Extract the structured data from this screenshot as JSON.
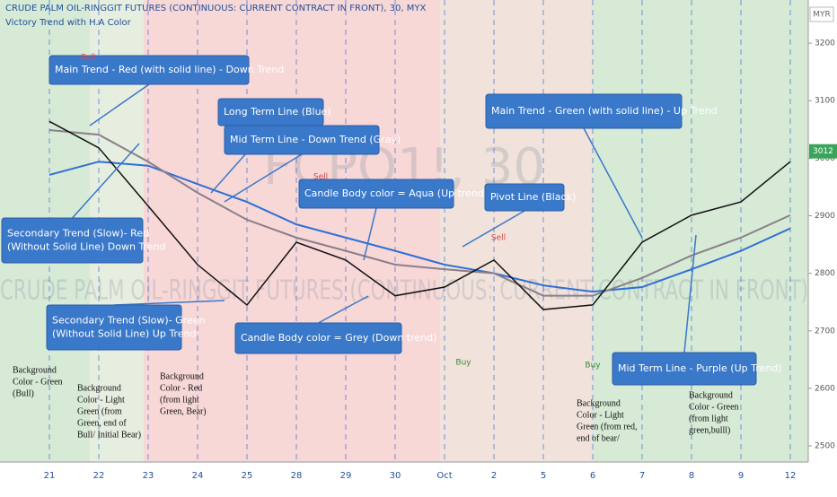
{
  "chart_data": {
    "type": "line",
    "title": "CRUDE PALM OIL-RINGGIT FUTURES (CONTINUOUS: CURRENT CONTRACT IN FRONT), 30, MYX",
    "subtitle": "Victory Trend with H.A Color",
    "watermark": "FCPO1!, 30",
    "watermark_long": "CRUDE PALM OIL-RINGGIT FUTURES (CONTINUOUS: CURRENT CONTRACT IN FRONT)",
    "currency": "MYR",
    "last_price": 3012,
    "categories": [
      "21",
      "22",
      "23",
      "24",
      "25",
      "28",
      "29",
      "30",
      "Oct",
      "2",
      "5",
      "6",
      "7",
      "8",
      "9",
      "12"
    ],
    "series": [
      {
        "name": "Long Term Line",
        "color": "#2f6fd6",
        "values": [
          2971,
          2994,
          2987,
          2955,
          2924,
          2885,
          2862,
          2839,
          2815,
          2800,
          2779,
          2768,
          2776,
          2807,
          2839,
          2878
        ]
      },
      {
        "name": "Mid Term Line",
        "color": "#8a7f8a",
        "values": [
          3049,
          3041,
          2994,
          2940,
          2893,
          2862,
          2839,
          2815,
          2807,
          2800,
          2761,
          2761,
          2792,
          2831,
          2862,
          2901
        ]
      },
      {
        "name": "Pivot Line",
        "color": "#111111",
        "values": [
          3064,
          3018,
          2917,
          2815,
          2745,
          2854,
          2823,
          2761,
          2776,
          2823,
          2737,
          2745,
          2854,
          2901,
          2924,
          2994
        ]
      }
    ],
    "ylim": [
      2472,
      3275
    ],
    "yticks": [
      2500,
      2600,
      2700,
      2800,
      2900,
      3000,
      3100,
      3200
    ],
    "callouts": [
      [
        "Main Trend  - Red (with solid line) - Down Trend"
      ],
      [
        "Long Term Line (Blue)"
      ],
      [
        "Mid Term Line - Down Trend (Gray)"
      ],
      [
        "Main Trend  - Green (with solid line) - Up Trend"
      ],
      [
        "Candle Body color = Aqua (Up trend)"
      ],
      [
        "Pivot Line (Black)"
      ],
      [
        "Secondary Trend (Slow)- Red",
        "(Without Solid Line) Down Trend"
      ],
      [
        "Secondary Trend (Slow)- Green",
        "(Without Solid Line) Up Trend"
      ],
      [
        "Candle Body color = Grey (Down trend)"
      ],
      [
        "Mid Term Line - Purple (Up Trend)"
      ]
    ],
    "notes": [
      [
        "Background",
        "Color - Green",
        "(Bull)"
      ],
      [
        "Background",
        "Color - Light",
        "Green (from",
        "Green, end of",
        "Bull/ Initial Bear)"
      ],
      [
        "Background",
        "Color - Red",
        "(from light",
        "Green, Bear)"
      ],
      [
        "Background",
        "Color - Light",
        "Green (from red,",
        "end of bear/"
      ],
      [
        "Background",
        "Color - Green",
        "(from light",
        "green,bulll)"
      ]
    ],
    "signals": [
      "Sell",
      "Sell",
      "Sell",
      "Buy",
      "Buy"
    ]
  }
}
